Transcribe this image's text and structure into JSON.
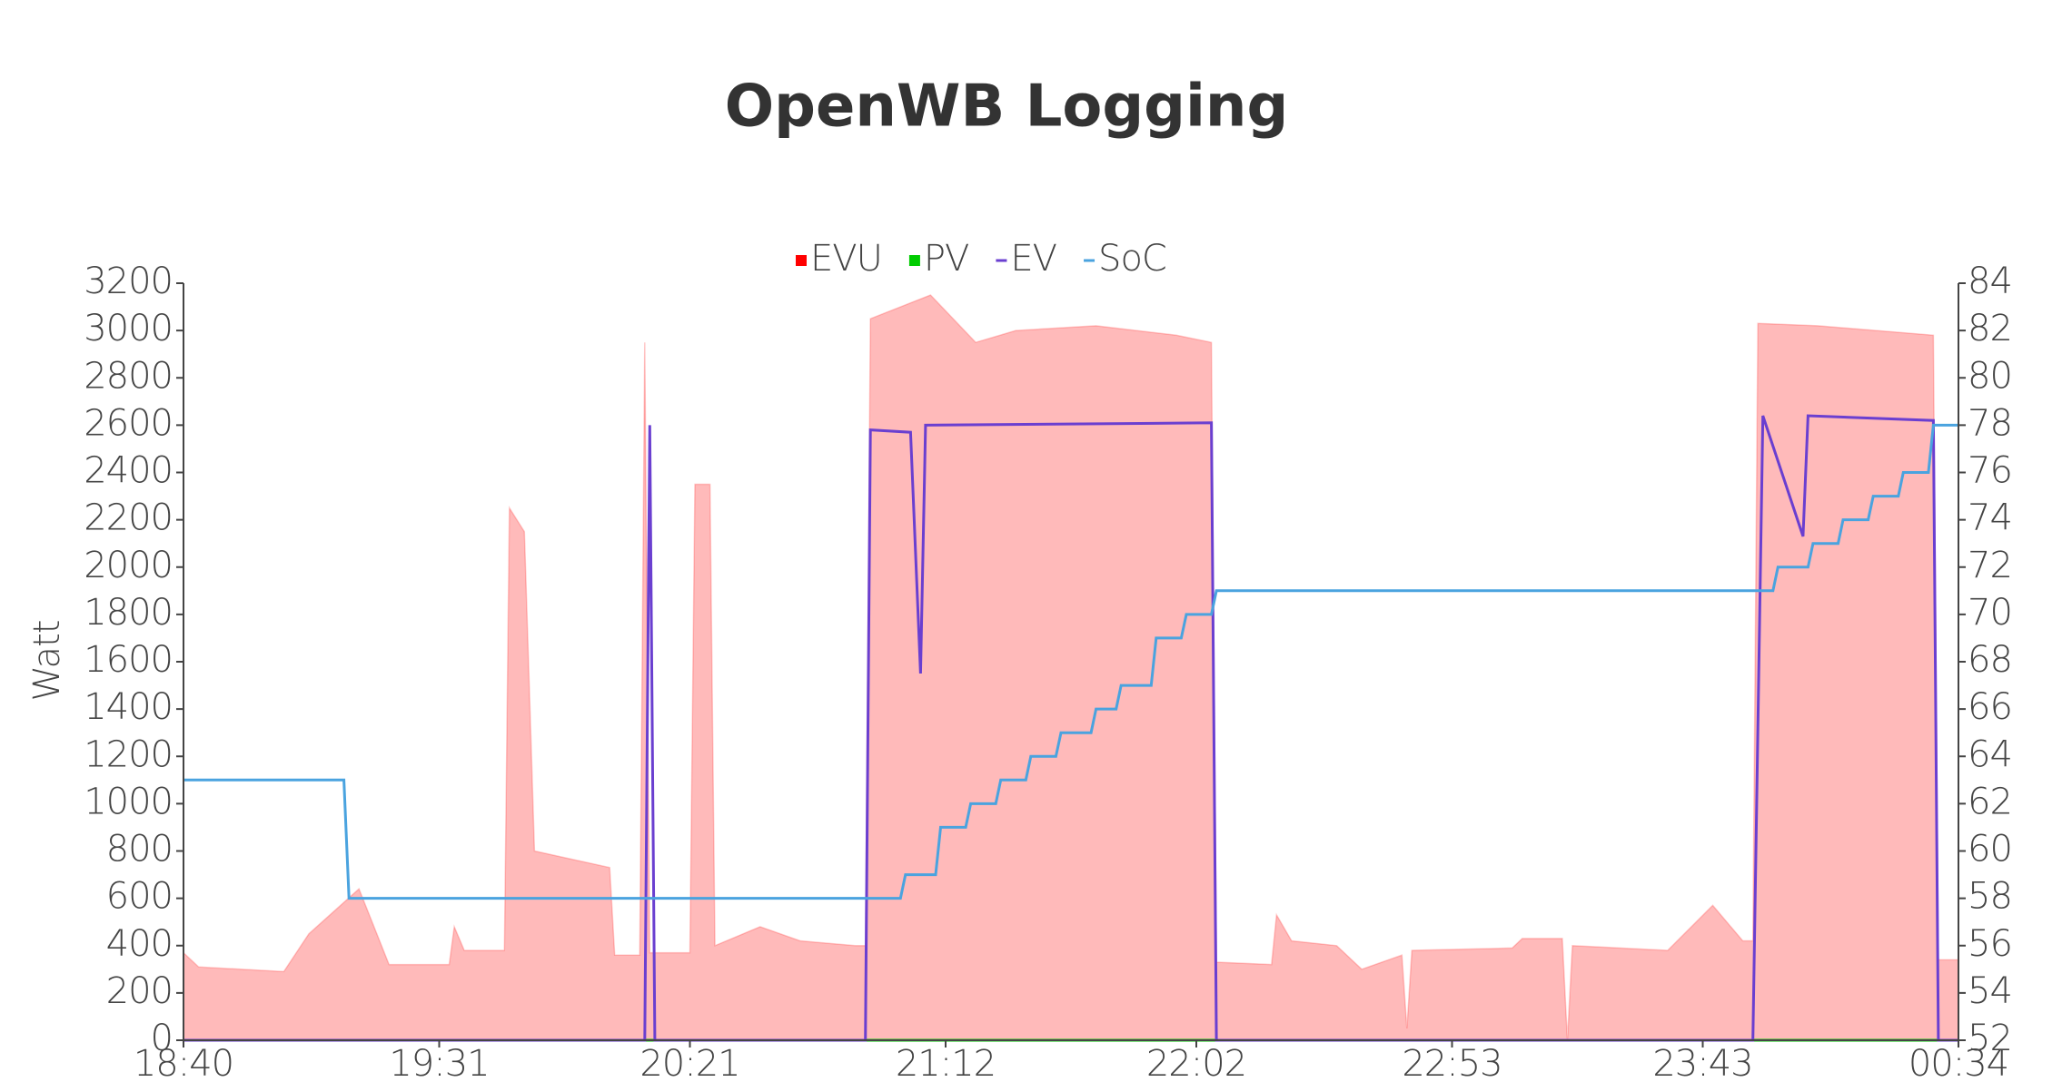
{
  "chart_data": {
    "type": "line",
    "title": "OpenWB Logging",
    "ylabel": "Watt",
    "xlim": [
      "18:40",
      "00:34"
    ],
    "xticks": [
      "18:40",
      "19:31",
      "20:21",
      "21:12",
      "22:02",
      "22:53",
      "23:43",
      "00:34"
    ],
    "ylim": [
      0,
      3200
    ],
    "yticks": [
      0,
      200,
      400,
      600,
      800,
      1000,
      1200,
      1400,
      1600,
      1800,
      2000,
      2200,
      2400,
      2600,
      2800,
      3000,
      3200
    ],
    "y2lim": [
      52,
      84
    ],
    "y2ticks": [
      52,
      54,
      56,
      58,
      60,
      62,
      64,
      66,
      68,
      70,
      72,
      74,
      76,
      78,
      80,
      82,
      84
    ],
    "series": [
      {
        "name": "EVU",
        "color": "#ff0000",
        "area": true,
        "x": [
          "18:40",
          "18:43",
          "19:00",
          "19:05",
          "19:15",
          "19:21",
          "19:33",
          "19:34",
          "19:36",
          "19:44",
          "19:45",
          "19:48",
          "19:50",
          "20:05",
          "20:06",
          "20:11",
          "20:12",
          "20:13",
          "20:14",
          "20:21",
          "20:22",
          "20:25",
          "20:26",
          "20:35",
          "20:43",
          "20:54",
          "20:56",
          "20:57",
          "21:09",
          "21:18",
          "21:26",
          "21:42",
          "21:58",
          "22:05",
          "22:06",
          "22:17",
          "22:18",
          "22:21",
          "22:30",
          "22:35",
          "22:43",
          "22:44",
          "22:45",
          "23:05",
          "23:07",
          "23:15",
          "23:16",
          "23:17",
          "23:36",
          "23:45",
          "23:51",
          "23:53",
          "23:54",
          "00:06",
          "00:29",
          "00:30",
          "00:34"
        ],
        "values": [
          370,
          310,
          290,
          450,
          640,
          320,
          320,
          480,
          380,
          380,
          2250,
          2150,
          800,
          730,
          360,
          360,
          2950,
          370,
          370,
          370,
          2350,
          2350,
          400,
          480,
          420,
          400,
          400,
          3050,
          3150,
          2950,
          3000,
          3020,
          2980,
          2950,
          330,
          320,
          530,
          420,
          400,
          300,
          360,
          50,
          380,
          390,
          430,
          430,
          0,
          400,
          380,
          570,
          420,
          420,
          3030,
          3020,
          2980,
          340,
          340
        ]
      },
      {
        "name": "PV",
        "color": "#00cc00",
        "x": [
          "18:40",
          "00:34"
        ],
        "values": [
          0,
          0
        ]
      },
      {
        "name": "EV",
        "color": "#6a3fd0",
        "x": [
          "18:40",
          "20:12",
          "20:13",
          "20:14",
          "20:56",
          "20:57",
          "21:05",
          "21:07",
          "21:08",
          "22:05",
          "22:06",
          "23:53",
          "23:55",
          "00:03",
          "00:04",
          "00:29",
          "00:30",
          "00:34"
        ],
        "values": [
          0,
          0,
          2600,
          0,
          0,
          2580,
          2570,
          1550,
          2600,
          2610,
          0,
          0,
          2640,
          2130,
          2640,
          2620,
          0,
          0
        ]
      },
      {
        "name": "SoC",
        "color": "#4aa3df",
        "axis": "y2",
        "x": [
          "18:40",
          "19:12",
          "19:13",
          "21:03",
          "21:04",
          "21:10",
          "21:11",
          "21:16",
          "21:17",
          "21:22",
          "21:23",
          "21:28",
          "21:29",
          "21:34",
          "21:35",
          "21:41",
          "21:42",
          "21:46",
          "21:47",
          "21:53",
          "21:54",
          "21:59",
          "22:00",
          "22:05",
          "22:06",
          "23:57",
          "23:58",
          "00:04",
          "00:05",
          "00:10",
          "00:11",
          "00:16",
          "00:17",
          "00:22",
          "00:23",
          "00:28",
          "00:29",
          "00:34"
        ],
        "values": [
          63,
          63,
          58,
          58,
          59,
          59,
          61,
          61,
          62,
          62,
          63,
          63,
          64,
          64,
          65,
          65,
          66,
          66,
          67,
          67,
          69,
          69,
          70,
          70,
          71,
          71,
          72,
          72,
          73,
          73,
          74,
          74,
          75,
          75,
          76,
          76,
          78,
          78
        ]
      }
    ]
  }
}
